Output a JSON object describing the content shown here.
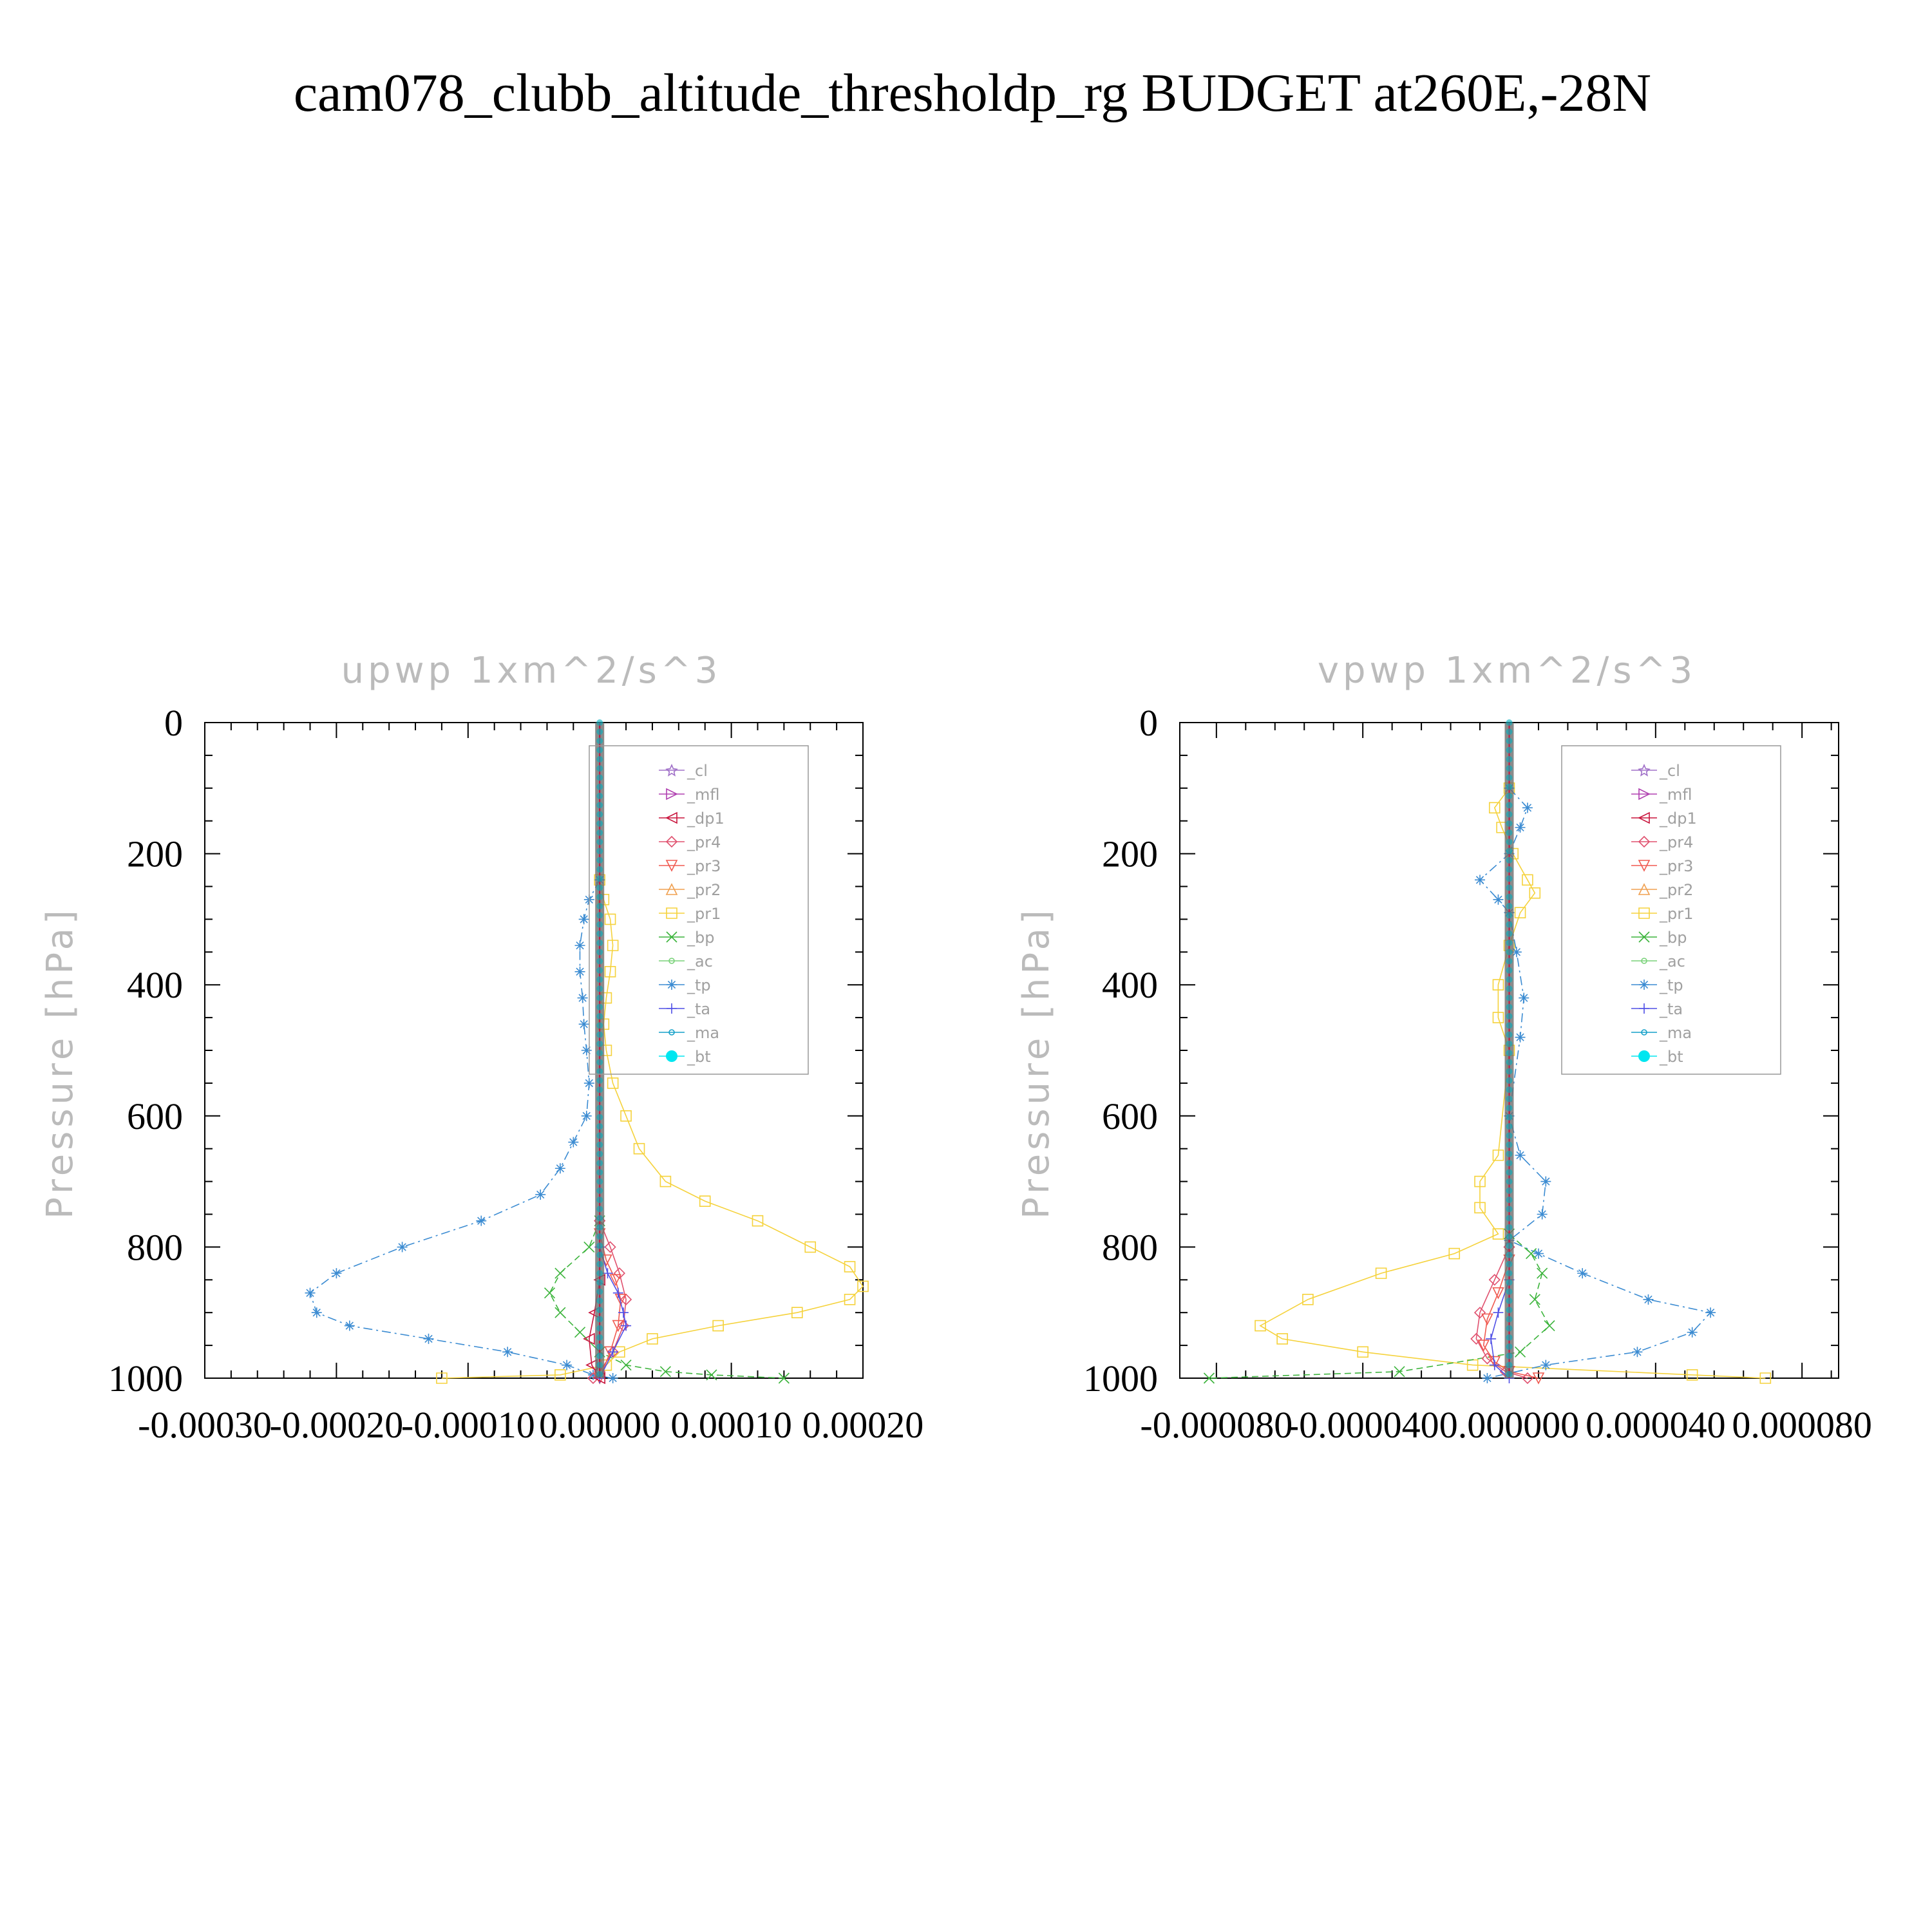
{
  "figure": {
    "title": "cam078_clubb_altitude_thresholdp_rg  BUDGET at260E,-28N"
  },
  "legend_entries": [
    {
      "name": "_cl",
      "color": "#a070c8",
      "marker": "star"
    },
    {
      "name": "_mfl",
      "color": "#b040b0",
      "marker": "tri-right"
    },
    {
      "name": "_dp1",
      "color": "#c8143c",
      "marker": "tri-left"
    },
    {
      "name": "_pr4",
      "color": "#e0506e",
      "marker": "diamond"
    },
    {
      "name": "_pr3",
      "color": "#f05a50",
      "marker": "tri-down"
    },
    {
      "name": "_pr2",
      "color": "#f0a050",
      "marker": "tri-up"
    },
    {
      "name": "_pr1",
      "color": "#f5d23c",
      "marker": "square"
    },
    {
      "name": "_bp",
      "color": "#3cb43c",
      "marker": "x"
    },
    {
      "name": "_ac",
      "color": "#78d278",
      "marker": "circle"
    },
    {
      "name": "_tp",
      "color": "#3c8cd2",
      "marker": "asterisk"
    },
    {
      "name": "_ta",
      "color": "#5050e6",
      "marker": "plus"
    },
    {
      "name": "_ma",
      "color": "#14a0c8",
      "marker": "dot"
    },
    {
      "name": "_bt",
      "color": "#00e6f0",
      "marker": "filled-circle"
    }
  ],
  "chart_data": [
    {
      "type": "line",
      "title": "upwp   1xm^2/s^3",
      "ylabel": "Pressure [hPa]",
      "xlabel": "",
      "xlim": [
        -0.0003,
        0.0002
      ],
      "ylim": [
        1000,
        0
      ],
      "xticks": [
        "-0.00030",
        "-0.00020",
        "-0.00010",
        "0.00000",
        "0.00010",
        "0.00020"
      ],
      "yticks": [
        "0",
        "200",
        "400",
        "600",
        "800",
        "1000"
      ],
      "xtick_values": [
        -0.0003,
        -0.0002,
        -0.0001,
        0.0,
        0.0001,
        0.0002
      ],
      "ytick_values": [
        0,
        200,
        400,
        600,
        800,
        1000
      ],
      "series": [
        {
          "name": "_pr1",
          "x": [
            0.0,
            3e-06,
            8e-06,
            1e-05,
            8e-06,
            5e-06,
            3e-06,
            5e-06,
            1e-05,
            2e-05,
            3e-05,
            5e-05,
            8e-05,
            0.00012,
            0.00016,
            0.00019,
            0.0002,
            0.00019,
            0.00015,
            9e-05,
            4e-05,
            1.5e-05,
            5e-06,
            -3e-05,
            -0.00012
          ],
          "y": [
            240,
            270,
            300,
            340,
            380,
            420,
            460,
            500,
            550,
            600,
            650,
            700,
            730,
            760,
            800,
            830,
            860,
            880,
            900,
            920,
            940,
            960,
            980,
            995,
            1000
          ]
        },
        {
          "name": "_tp",
          "x": [
            0.0,
            -8e-06,
            -1.2e-05,
            -1.5e-05,
            -1.5e-05,
            -1.3e-05,
            -1.2e-05,
            -1e-05,
            -8e-06,
            -1e-05,
            -2e-05,
            -3e-05,
            -4.5e-05,
            -9e-05,
            -0.00015,
            -0.0002,
            -0.00022,
            -0.000215,
            -0.00019,
            -0.00013,
            -7e-05,
            -2.5e-05,
            -5e-06,
            1e-05
          ],
          "y": [
            240,
            270,
            300,
            340,
            380,
            420,
            460,
            500,
            550,
            600,
            640,
            680,
            720,
            760,
            800,
            840,
            870,
            900,
            920,
            940,
            960,
            980,
            995,
            1000
          ]
        },
        {
          "name": "_bp",
          "x": [
            0.0,
            -8e-06,
            -3e-05,
            -3.8e-05,
            -3e-05,
            -1.5e-05,
            0.0,
            2e-05,
            5e-05,
            8.5e-05,
            0.00014
          ],
          "y": [
            760,
            800,
            840,
            870,
            900,
            930,
            960,
            980,
            990,
            995,
            1000
          ]
        },
        {
          "name": "_pr4",
          "x": [
            0.0,
            8e-06,
            1.5e-05,
            2e-05,
            1.8e-05,
            1e-05,
            0.0,
            -5e-06
          ],
          "y": [
            760,
            800,
            840,
            880,
            920,
            960,
            990,
            1000
          ]
        },
        {
          "name": "_pr3",
          "x": [
            0.0,
            5e-06,
            1.2e-05,
            1.6e-05,
            1.4e-05,
            8e-06,
            0.0
          ],
          "y": [
            780,
            820,
            850,
            880,
            920,
            960,
            1000
          ]
        },
        {
          "name": "_ta",
          "x": [
            0.0,
            6e-06,
            1.4e-05,
            1.8e-05,
            2e-05,
            1e-05,
            0.0
          ],
          "y": [
            800,
            840,
            870,
            900,
            920,
            960,
            1000
          ]
        },
        {
          "name": "_dp1",
          "x": [
            0.0,
            -4e-06,
            -8e-06,
            -6e-06,
            0.0
          ],
          "y": [
            850,
            900,
            940,
            980,
            1000
          ]
        },
        {
          "name": "_bt",
          "x": [
            0.0,
            0.0
          ],
          "y": [
            0,
            1000
          ]
        }
      ]
    },
    {
      "type": "line",
      "title": "vpwp   1xm^2/s^3",
      "ylabel": "Pressure [hPa]",
      "xlabel": "",
      "xlim": [
        -9e-05,
        9e-05
      ],
      "ylim": [
        1000,
        0
      ],
      "xticks": [
        "-0.000080",
        "-0.000040",
        "0.000000",
        "0.000040",
        "0.000080"
      ],
      "yticks": [
        "0",
        "200",
        "400",
        "600",
        "800",
        "1000"
      ],
      "xtick_values": [
        -8e-05,
        -4e-05,
        0.0,
        4e-05,
        8e-05
      ],
      "ytick_values": [
        0,
        200,
        400,
        600,
        800,
        1000
      ],
      "series": [
        {
          "name": "_pr1",
          "x": [
            0.0,
            -4e-06,
            -2e-06,
            1e-06,
            5e-06,
            7e-06,
            3e-06,
            0.0,
            -3e-06,
            -3e-06,
            0.0,
            -3e-06,
            -8e-06,
            -8e-06,
            -3e-06,
            -1.5e-05,
            -3.5e-05,
            -5.5e-05,
            -6.8e-05,
            -6.2e-05,
            -4e-05,
            -1e-05,
            5e-05,
            7e-05
          ],
          "y": [
            100,
            130,
            160,
            200,
            240,
            260,
            290,
            340,
            400,
            450,
            500,
            660,
            700,
            740,
            780,
            810,
            840,
            880,
            920,
            940,
            960,
            980,
            995,
            1000
          ]
        },
        {
          "name": "_tp",
          "x": [
            0.0,
            5e-06,
            3e-06,
            0.0,
            -8e-06,
            -3e-06,
            0.0,
            2e-06,
            4e-06,
            3e-06,
            0.0,
            3e-06,
            1e-05,
            9e-06,
            0.0,
            8e-06,
            2e-05,
            3.8e-05,
            5.5e-05,
            5e-05,
            3.5e-05,
            1e-05,
            -6e-06
          ],
          "y": [
            100,
            130,
            160,
            200,
            240,
            270,
            290,
            350,
            420,
            480,
            600,
            660,
            700,
            750,
            790,
            810,
            840,
            880,
            900,
            930,
            960,
            980,
            1000
          ]
        },
        {
          "name": "_bp",
          "x": [
            0.0,
            6e-06,
            9e-06,
            7e-06,
            1.1e-05,
            3e-06,
            -3e-05,
            -8.2e-05
          ],
          "y": [
            780,
            810,
            840,
            880,
            920,
            960,
            990,
            1000
          ]
        },
        {
          "name": "_pr4",
          "x": [
            0.0,
            -4e-06,
            -8e-06,
            -9e-06,
            -6e-06,
            -1e-06,
            5e-06
          ],
          "y": [
            800,
            850,
            900,
            940,
            970,
            990,
            1000
          ]
        },
        {
          "name": "_pr3",
          "x": [
            0.0,
            -3e-06,
            -6e-06,
            -7e-06,
            -4e-06,
            0.0,
            8e-06
          ],
          "y": [
            820,
            870,
            910,
            950,
            975,
            990,
            1000
          ]
        },
        {
          "name": "_ta",
          "x": [
            0.0,
            -3e-06,
            -5e-06,
            -4e-06,
            0.0
          ],
          "y": [
            850,
            900,
            940,
            980,
            1000
          ]
        },
        {
          "name": "_bt",
          "x": [
            0.0,
            0.0
          ],
          "y": [
            0,
            1000
          ]
        }
      ]
    }
  ]
}
